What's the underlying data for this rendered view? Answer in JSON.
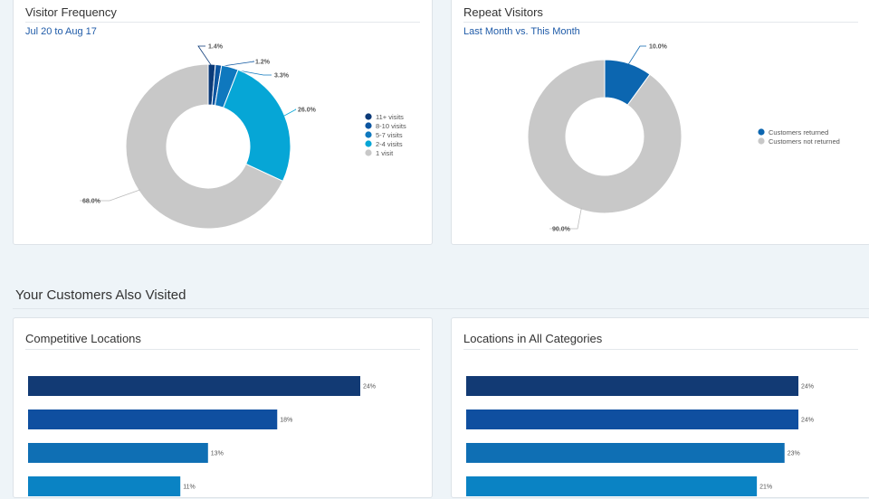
{
  "section": {
    "title": "Your Customers Also Visited"
  },
  "cards": {
    "visitor_frequency": {
      "title": "Visitor Frequency",
      "subtitle": "Jul 20 to Aug 17"
    },
    "repeat_visitors": {
      "title": "Repeat Visitors",
      "subtitle": "Last Month vs. This Month"
    },
    "competitive": {
      "title": "Competitive Locations"
    },
    "all_categories": {
      "title": "Locations in All Categories"
    }
  },
  "chart_data": [
    {
      "type": "pie",
      "categories": [
        "11+ visits",
        "8-10 visits",
        "5-7 visits",
        "2-4 visits",
        "1 visit"
      ],
      "values": [
        1.4,
        1.2,
        3.3,
        26.0,
        68.0
      ],
      "labels": [
        "1.4%",
        "1.2%",
        "3.3%",
        "26.0%",
        "68.0%"
      ],
      "colors": [
        "#0b3a78",
        "#0c55a0",
        "#0f78be",
        "#06a6d6",
        "#c8c8c8"
      ],
      "legend": "right"
    },
    {
      "type": "pie",
      "categories": [
        "Customers returned",
        "Customers not returned"
      ],
      "values": [
        10.0,
        90.0
      ],
      "labels": [
        "10.0%",
        "90.0%"
      ],
      "colors": [
        "#0c66b0",
        "#c8c8c8"
      ],
      "legend": "right"
    },
    {
      "type": "bar",
      "orientation": "horizontal",
      "values": [
        24,
        18,
        13,
        11
      ],
      "labels": [
        "24%",
        "18%",
        "13%",
        "11%"
      ],
      "colors": [
        "#123a74",
        "#0f4fa0",
        "#0f6fb4",
        "#0a83c4"
      ]
    },
    {
      "type": "bar",
      "orientation": "horizontal",
      "values": [
        24,
        24,
        23,
        21
      ],
      "labels": [
        "24%",
        "24%",
        "23%",
        "21%"
      ],
      "colors": [
        "#123a74",
        "#0f4fa0",
        "#0f6fb4",
        "#0a83c4"
      ]
    }
  ]
}
